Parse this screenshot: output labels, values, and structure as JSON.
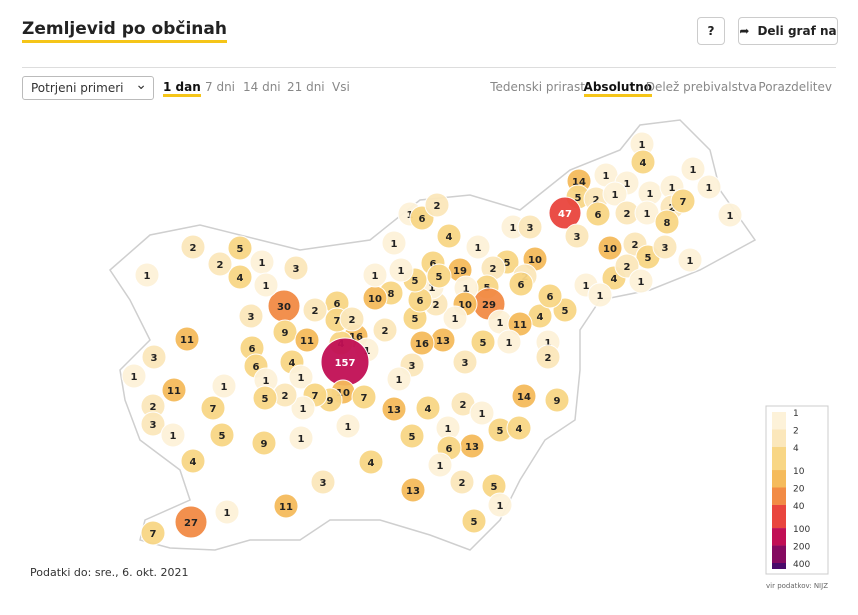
{
  "header": {
    "title": "Zemljevid po občinah",
    "help": "?",
    "share": "Deli graf na"
  },
  "controls": {
    "select": "Potrjeni primeri",
    "periods": [
      "1 dan",
      "7 dni",
      "14 dni",
      "21 dni",
      "Vsi"
    ],
    "active_period": 0,
    "modes": [
      "Tedenski prirast",
      "Absolutno",
      "Delež prebivalstva",
      "Porazdelitev"
    ],
    "active_mode": 1
  },
  "chart_data": {
    "type": "choropleth",
    "values": [
      1,
      4,
      14,
      1,
      1,
      5,
      2,
      1,
      1,
      1,
      1,
      1,
      47,
      6,
      2,
      1,
      2,
      7,
      8,
      1,
      3,
      10,
      2,
      5,
      3,
      4,
      2,
      1,
      1,
      1,
      1,
      5,
      4,
      6,
      1,
      6,
      2,
      4,
      1,
      1,
      3,
      5,
      10,
      2,
      6,
      2,
      19,
      5,
      29,
      1,
      10,
      1,
      11,
      1,
      1,
      2,
      5,
      1,
      13,
      16,
      5,
      2,
      1,
      6,
      5,
      6,
      5,
      1,
      8,
      10,
      1,
      1,
      2,
      16,
      4,
      6,
      7,
      2,
      1,
      157,
      3,
      1,
      3,
      30,
      9,
      2,
      11,
      4,
      3,
      6,
      6,
      1,
      1,
      10,
      7,
      9,
      7,
      1,
      2,
      5,
      13,
      4,
      5,
      1,
      2,
      13,
      1,
      5,
      4,
      14,
      9,
      6,
      1,
      2,
      5,
      1,
      13,
      5,
      4,
      1,
      1,
      3,
      11,
      1,
      27,
      7,
      9,
      5,
      4,
      7,
      1,
      11,
      2,
      3,
      1,
      3,
      1,
      11,
      2,
      1,
      2,
      5,
      4,
      1,
      3,
      1
    ],
    "log_scale": true,
    "legend": {
      "ticks": [
        1,
        2,
        4,
        10,
        20,
        40,
        100,
        200,
        400
      ],
      "colors": [
        "#fdf2d9",
        "#fbe7bb",
        "#f8d685",
        "#f5bb5c",
        "#f28b45",
        "#e9453e",
        "#c10f55",
        "#850a60",
        "#4a0a6a"
      ]
    },
    "updated": "Podatki do: sre., 6. okt. 2021",
    "source": "vir podatkov: NIJZ"
  }
}
